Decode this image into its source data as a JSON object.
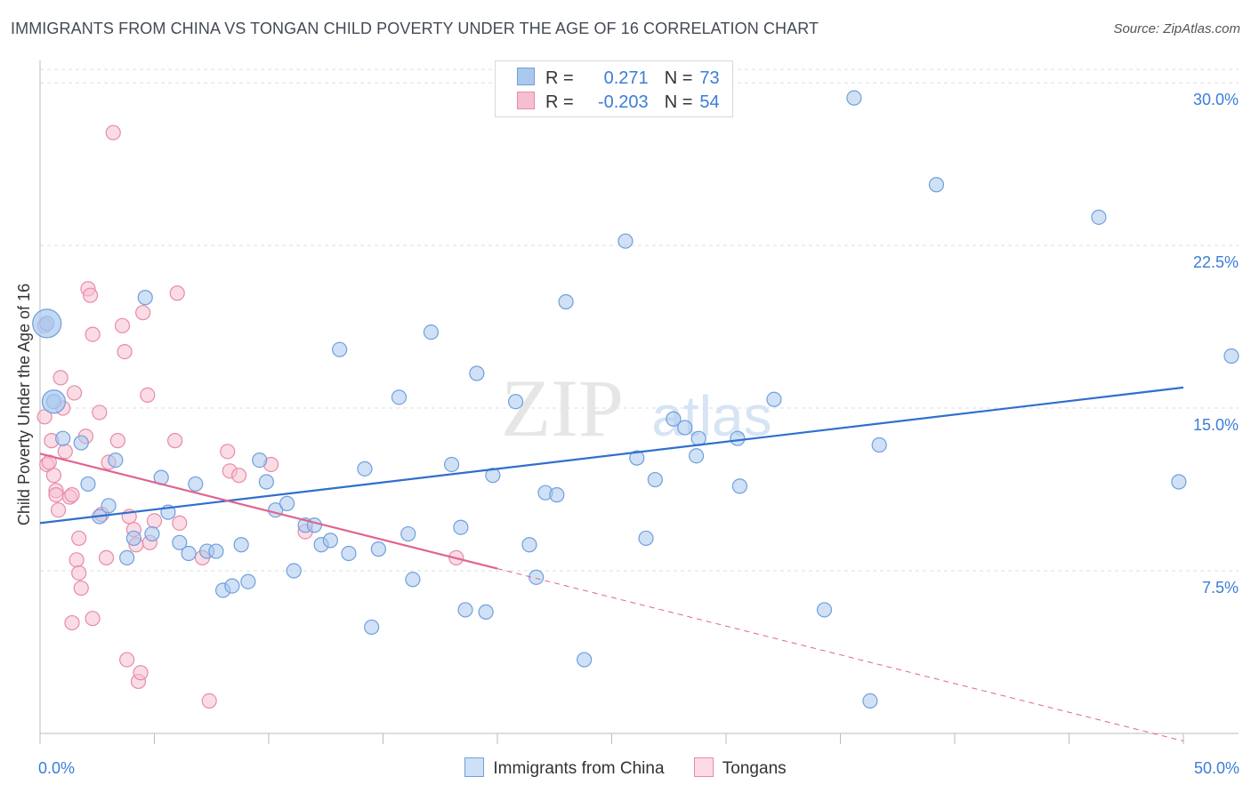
{
  "header": {
    "title": "IMMIGRANTS FROM CHINA VS TONGAN CHILD POVERTY UNDER THE AGE OF 16 CORRELATION CHART",
    "source": "Source: ZipAtlas.com"
  },
  "watermark": {
    "zip": "ZIP",
    "atlas": "atlas"
  },
  "legend": {
    "rows": [
      {
        "r_label": "R =",
        "r_value": "0.271",
        "n_label": "N =",
        "n_value": "73"
      },
      {
        "r_label": "R =",
        "r_value": "-0.203",
        "n_label": "N =",
        "n_value": "54"
      }
    ]
  },
  "bottom_legend": {
    "items": [
      "Immigrants from China",
      "Tongans"
    ]
  },
  "colors": {
    "china_fill": "#aac8ee",
    "china_stroke": "#6f9fdc",
    "china_line": "#2f6fce",
    "tongan_fill": "#f6bfd0",
    "tongan_stroke": "#e88aa9",
    "tongan_line": "#e0648f",
    "axis_text": "#3b7dd8",
    "grid": "#dddddd"
  },
  "chart_data": {
    "type": "scatter",
    "title": "IMMIGRANTS FROM CHINA VS TONGAN CHILD POVERTY UNDER THE AGE OF 16 CORRELATION CHART",
    "xlabel": "",
    "ylabel": "Child Poverty Under the Age of 16",
    "xlim": [
      0,
      50
    ],
    "ylim": [
      0,
      30.7
    ],
    "x_tick_labels": [
      "0.0%",
      "50.0%"
    ],
    "y_ticks": [
      7.5,
      15.0,
      22.5,
      30.0
    ],
    "y_tick_labels": [
      "7.5%",
      "15.0%",
      "22.5%",
      "30.0%"
    ],
    "grid": "horizontal dashed",
    "legend_position": "top-center",
    "series": [
      {
        "name": "Immigrants from China",
        "R": 0.271,
        "N": 73,
        "trend": {
          "x": [
            0,
            50
          ],
          "y": [
            9.7,
            15.95
          ],
          "dashed_from": null
        },
        "points": [
          [
            0.3,
            18.9
          ],
          [
            0.6,
            15.3
          ],
          [
            1.0,
            13.6
          ],
          [
            1.8,
            13.4
          ],
          [
            2.1,
            11.5
          ],
          [
            2.6,
            10.0
          ],
          [
            3.0,
            10.5
          ],
          [
            3.3,
            12.6
          ],
          [
            3.8,
            8.1
          ],
          [
            4.1,
            9.0
          ],
          [
            4.6,
            20.1
          ],
          [
            4.9,
            9.2
          ],
          [
            5.3,
            11.8
          ],
          [
            5.6,
            10.2
          ],
          [
            6.1,
            8.8
          ],
          [
            6.5,
            8.3
          ],
          [
            6.8,
            11.5
          ],
          [
            7.3,
            8.4
          ],
          [
            7.7,
            8.4
          ],
          [
            8.0,
            6.6
          ],
          [
            8.4,
            6.8
          ],
          [
            8.8,
            8.7
          ],
          [
            9.1,
            7.0
          ],
          [
            9.6,
            12.6
          ],
          [
            9.9,
            11.6
          ],
          [
            10.3,
            10.3
          ],
          [
            10.8,
            10.6
          ],
          [
            11.1,
            7.5
          ],
          [
            11.6,
            9.6
          ],
          [
            12.0,
            9.6
          ],
          [
            12.3,
            8.7
          ],
          [
            12.7,
            8.9
          ],
          [
            13.1,
            17.7
          ],
          [
            13.5,
            8.3
          ],
          [
            14.2,
            12.2
          ],
          [
            14.5,
            4.9
          ],
          [
            14.8,
            8.5
          ],
          [
            15.7,
            15.5
          ],
          [
            16.1,
            9.2
          ],
          [
            16.3,
            7.1
          ],
          [
            17.1,
            18.5
          ],
          [
            18.0,
            12.4
          ],
          [
            18.4,
            9.5
          ],
          [
            18.6,
            5.7
          ],
          [
            19.1,
            16.6
          ],
          [
            19.5,
            5.6
          ],
          [
            19.8,
            11.9
          ],
          [
            20.8,
            15.3
          ],
          [
            21.4,
            8.7
          ],
          [
            21.7,
            7.2
          ],
          [
            22.1,
            11.1
          ],
          [
            22.6,
            11.0
          ],
          [
            23.0,
            19.9
          ],
          [
            23.8,
            3.4
          ],
          [
            25.6,
            22.7
          ],
          [
            26.1,
            12.7
          ],
          [
            26.5,
            9.0
          ],
          [
            26.9,
            11.7
          ],
          [
            27.7,
            14.5
          ],
          [
            28.2,
            14.1
          ],
          [
            28.7,
            12.8
          ],
          [
            28.8,
            13.6
          ],
          [
            30.5,
            13.6
          ],
          [
            30.6,
            11.4
          ],
          [
            32.1,
            15.4
          ],
          [
            34.3,
            5.7
          ],
          [
            35.6,
            29.3
          ],
          [
            36.3,
            1.5
          ],
          [
            36.7,
            13.3
          ],
          [
            39.2,
            25.3
          ],
          [
            46.3,
            23.8
          ],
          [
            49.8,
            11.6
          ],
          [
            52.1,
            17.4
          ]
        ]
      },
      {
        "name": "Tongans",
        "R": -0.203,
        "N": 54,
        "trend": {
          "x": [
            0,
            50
          ],
          "y": [
            12.9,
            -0.35
          ],
          "dashed_from": 20
        },
        "points": [
          [
            0.2,
            18.8
          ],
          [
            0.2,
            14.6
          ],
          [
            0.3,
            12.4
          ],
          [
            0.4,
            12.5
          ],
          [
            0.5,
            13.5
          ],
          [
            0.6,
            11.9
          ],
          [
            0.7,
            11.2
          ],
          [
            0.7,
            11.0
          ],
          [
            0.8,
            10.3
          ],
          [
            0.9,
            16.4
          ],
          [
            1.0,
            15.0
          ],
          [
            1.1,
            13.0
          ],
          [
            1.3,
            10.9
          ],
          [
            1.4,
            11.0
          ],
          [
            1.4,
            5.1
          ],
          [
            1.5,
            15.7
          ],
          [
            1.6,
            8.0
          ],
          [
            1.7,
            7.4
          ],
          [
            1.7,
            9.0
          ],
          [
            1.8,
            6.7
          ],
          [
            2.0,
            13.7
          ],
          [
            2.1,
            20.5
          ],
          [
            2.2,
            20.2
          ],
          [
            2.3,
            18.4
          ],
          [
            2.3,
            5.3
          ],
          [
            2.6,
            14.8
          ],
          [
            2.7,
            10.1
          ],
          [
            2.9,
            8.1
          ],
          [
            3.0,
            12.5
          ],
          [
            3.2,
            27.7
          ],
          [
            3.4,
            13.5
          ],
          [
            3.6,
            18.8
          ],
          [
            3.7,
            17.6
          ],
          [
            3.8,
            3.4
          ],
          [
            3.9,
            10.0
          ],
          [
            4.1,
            9.4
          ],
          [
            4.2,
            8.7
          ],
          [
            4.3,
            2.4
          ],
          [
            4.4,
            2.8
          ],
          [
            4.5,
            19.4
          ],
          [
            4.7,
            15.6
          ],
          [
            4.8,
            8.8
          ],
          [
            5.0,
            9.8
          ],
          [
            5.9,
            13.5
          ],
          [
            6.0,
            20.3
          ],
          [
            6.1,
            9.7
          ],
          [
            7.1,
            8.1
          ],
          [
            7.4,
            1.5
          ],
          [
            8.2,
            13.0
          ],
          [
            8.3,
            12.1
          ],
          [
            8.7,
            11.9
          ],
          [
            10.1,
            12.4
          ],
          [
            11.6,
            9.3
          ],
          [
            18.2,
            8.1
          ]
        ]
      }
    ],
    "big_points": [
      {
        "series": "Immigrants from China",
        "x": 0.3,
        "y": 18.9
      },
      {
        "series": "Immigrants from China",
        "x": 0.6,
        "y": 15.3
      }
    ]
  }
}
